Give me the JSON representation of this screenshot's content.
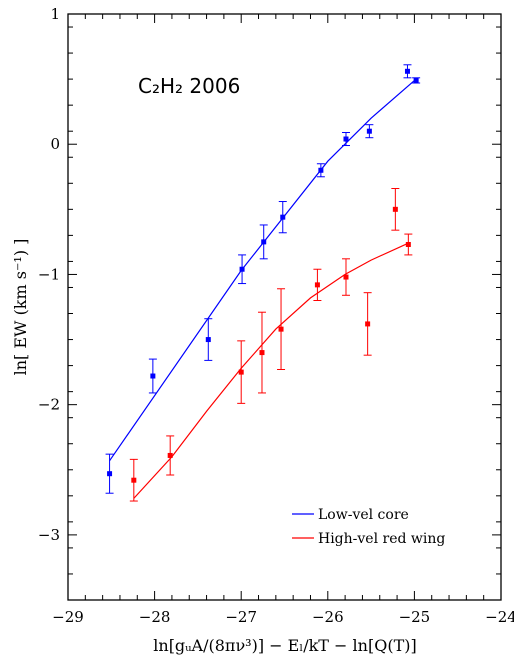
{
  "chart_data": {
    "type": "scatter",
    "annotation": "C₂H₂  2006",
    "xlabel": "ln[gᵤA/(8πν³)] − Eₗ/kT − ln[Q(T)]",
    "ylabel": "ln[ EW (km s⁻¹) ]",
    "xlim": [
      -29,
      -24
    ],
    "ylim": [
      -3.5,
      1
    ],
    "xticks": [
      -29,
      -28,
      -27,
      -26,
      -25,
      -24
    ],
    "yticks": [
      -3,
      -2,
      -1,
      0,
      1
    ],
    "xtick_labels": [
      "−29",
      "−28",
      "−27",
      "−26",
      "−25",
      "−24"
    ],
    "ytick_labels": [
      "−3",
      "−2",
      "−1",
      "0",
      "1"
    ],
    "legend_position": "bottom-right",
    "series": [
      {
        "name": "Low-vel core",
        "color": "#0000ff",
        "points": [
          {
            "x": -28.52,
            "y": -2.53,
            "err": 0.15
          },
          {
            "x": -28.02,
            "y": -1.78,
            "err": 0.13
          },
          {
            "x": -27.38,
            "y": -1.5,
            "err": 0.16
          },
          {
            "x": -26.99,
            "y": -0.96,
            "err": 0.11
          },
          {
            "x": -26.74,
            "y": -0.75,
            "err": 0.13
          },
          {
            "x": -26.52,
            "y": -0.56,
            "err": 0.12
          },
          {
            "x": -26.08,
            "y": -0.2,
            "err": 0.05
          },
          {
            "x": -25.79,
            "y": 0.04,
            "err": 0.05
          },
          {
            "x": -25.52,
            "y": 0.1,
            "err": 0.05
          },
          {
            "x": -25.08,
            "y": 0.56,
            "err": 0.05
          },
          {
            "x": -24.98,
            "y": 0.49,
            "err": 0.02
          }
        ],
        "fit": [
          [
            -28.52,
            -2.43
          ],
          [
            -27.0,
            -0.97
          ],
          [
            -26.0,
            -0.13
          ],
          [
            -25.5,
            0.2
          ],
          [
            -24.98,
            0.5
          ]
        ]
      },
      {
        "name": "High-vel red wing",
        "color": "#ff0000",
        "points": [
          {
            "x": -28.24,
            "y": -2.58,
            "err": 0.16
          },
          {
            "x": -27.82,
            "y": -2.39,
            "err": 0.15
          },
          {
            "x": -27.0,
            "y": -1.75,
            "err": 0.24
          },
          {
            "x": -26.76,
            "y": -1.6,
            "err": 0.31
          },
          {
            "x": -26.54,
            "y": -1.42,
            "err": 0.31
          },
          {
            "x": -26.12,
            "y": -1.08,
            "err": 0.12
          },
          {
            "x": -25.79,
            "y": -1.02,
            "err": 0.14
          },
          {
            "x": -25.54,
            "y": -1.38,
            "err": 0.24
          },
          {
            "x": -25.22,
            "y": -0.5,
            "err": 0.16
          },
          {
            "x": -25.07,
            "y": -0.77,
            "err": 0.08
          }
        ],
        "fit": [
          [
            -28.24,
            -2.72
          ],
          [
            -27.8,
            -2.4
          ],
          [
            -27.4,
            -2.05
          ],
          [
            -27.0,
            -1.72
          ],
          [
            -26.6,
            -1.42
          ],
          [
            -26.2,
            -1.18
          ],
          [
            -25.8,
            -1.0
          ],
          [
            -25.5,
            -0.89
          ],
          [
            -25.07,
            -0.76
          ]
        ]
      }
    ]
  }
}
